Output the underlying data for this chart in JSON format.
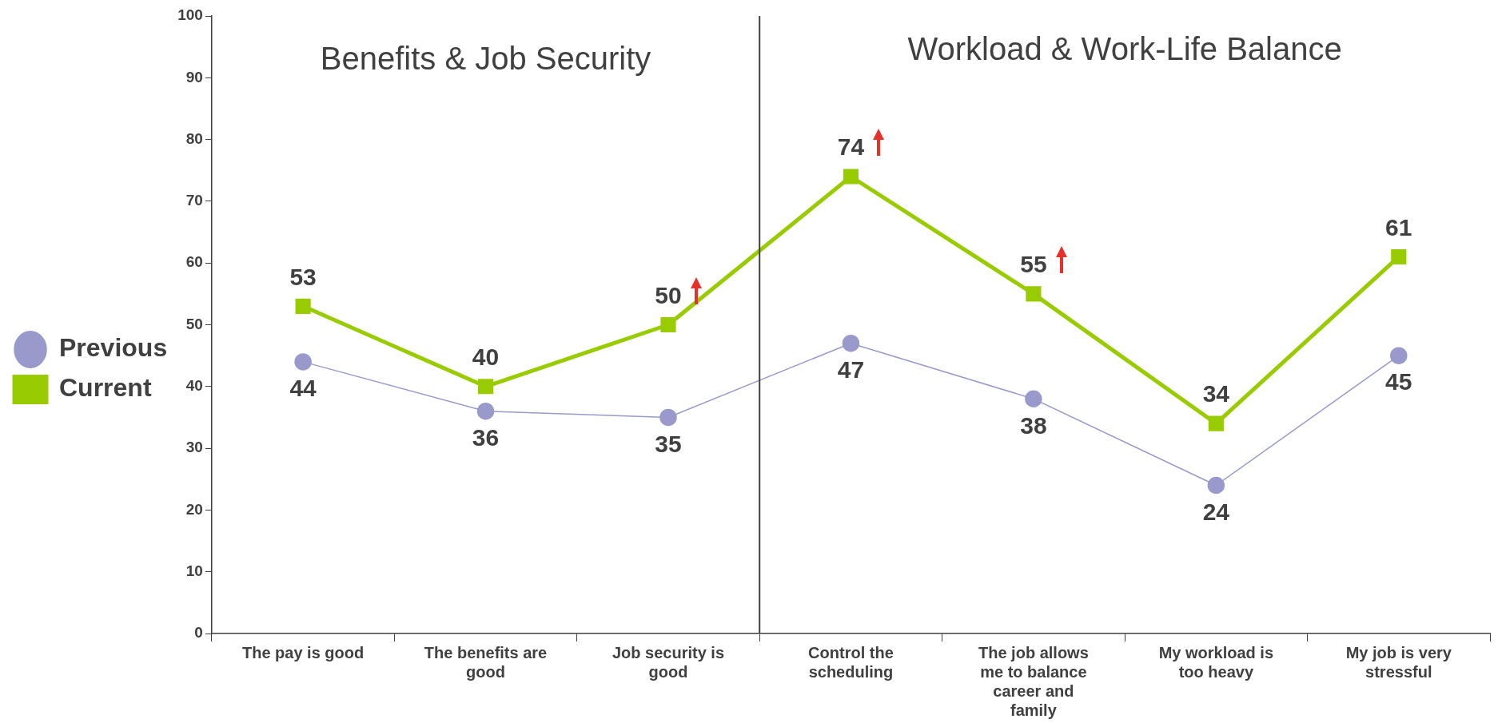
{
  "chart_data": {
    "type": "line",
    "categories": [
      "The pay is good",
      "The benefits are good",
      "Job security is good",
      "Control the scheduling",
      "The job allows me to balance career and family",
      "My workload is too heavy",
      "My job is very stressful"
    ],
    "series": [
      {
        "name": "Previous",
        "color": "#9999cc",
        "values": [
          44,
          36,
          35,
          47,
          38,
          24,
          45
        ],
        "marker": "circle"
      },
      {
        "name": "Current",
        "color": "#99cc00",
        "values": [
          53,
          40,
          50,
          74,
          55,
          34,
          61
        ],
        "marker": "square"
      }
    ],
    "ylim": [
      0,
      100
    ],
    "yticks": [
      0,
      10,
      20,
      30,
      40,
      50,
      60,
      70,
      80,
      90,
      100
    ],
    "grid": false,
    "legend": "left",
    "data_labels": true,
    "annotations": [
      "Benefits & Job Security",
      "Workload & Work-Life Balance"
    ]
  }
}
